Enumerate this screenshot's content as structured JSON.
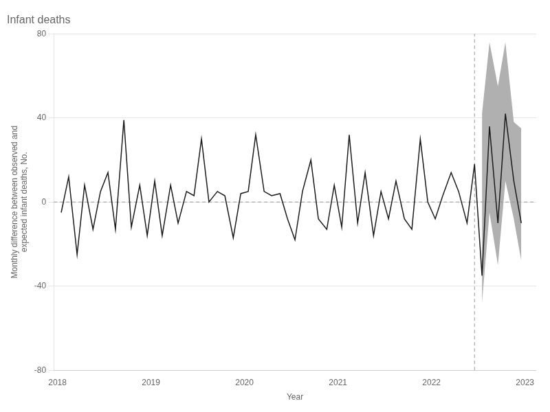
{
  "chart_data": {
    "type": "line",
    "title": "Infant deaths",
    "x_label": "Year",
    "y_label": "Monthly difference between observed and\nexpected infant deaths, No.",
    "x": [
      2018.04,
      2018.12,
      2018.21,
      2018.29,
      2018.38,
      2018.46,
      2018.54,
      2018.62,
      2018.71,
      2018.79,
      2018.88,
      2018.96,
      2019.04,
      2019.12,
      2019.21,
      2019.29,
      2019.38,
      2019.46,
      2019.54,
      2019.62,
      2019.71,
      2019.79,
      2019.88,
      2019.96,
      2020.04,
      2020.12,
      2020.21,
      2020.29,
      2020.38,
      2020.46,
      2020.54,
      2020.62,
      2020.71,
      2020.79,
      2020.88,
      2020.96,
      2021.04,
      2021.12,
      2021.21,
      2021.29,
      2021.38,
      2021.46,
      2021.54,
      2021.62,
      2021.71,
      2021.79,
      2021.88,
      2021.96,
      2022.04,
      2022.12,
      2022.21,
      2022.29,
      2022.38,
      2022.46,
      2022.54,
      2022.62,
      2022.71,
      2022.79,
      2022.88,
      2022.96
    ],
    "values": [
      -5,
      12,
      -25,
      8,
      -13,
      5,
      14,
      -13,
      39,
      -12,
      8,
      -16,
      10,
      -16,
      8,
      -10,
      5,
      3,
      30,
      0,
      5,
      3,
      -17,
      4,
      5,
      32,
      5,
      3,
      4,
      -8,
      -18,
      5,
      20,
      -8,
      -13,
      8,
      -12,
      32,
      -10,
      14,
      -16,
      5,
      -8,
      10,
      -8,
      -13,
      30,
      0,
      -8,
      3,
      14,
      5,
      -10,
      18,
      -35,
      36,
      -10,
      42,
      10,
      -10
    ],
    "color": "#1a1a1a",
    "band": {
      "x": [
        2022.54,
        2022.62,
        2022.71,
        2022.79,
        2022.88,
        2022.96
      ],
      "upper": [
        42,
        76,
        55,
        76,
        38,
        35
      ],
      "lower": [
        -48,
        -5,
        -30,
        10,
        -8,
        -28
      ],
      "color": "#b0b0b0"
    },
    "reference_lines": [
      {
        "axis": "y",
        "value": 0,
        "color": "#999999",
        "line_style": "dashed"
      },
      {
        "axis": "x",
        "value": 2022.46,
        "color": "#999999",
        "line_style": "dashed"
      }
    ],
    "xlim": [
      2017.96,
      2023.12
    ],
    "xticks": [
      2018,
      2019,
      2020,
      2021,
      2022,
      2023
    ],
    "ylim": [
      -80,
      80
    ],
    "yticks": [
      -80,
      -40,
      0,
      40,
      80
    ],
    "grid": "y"
  }
}
